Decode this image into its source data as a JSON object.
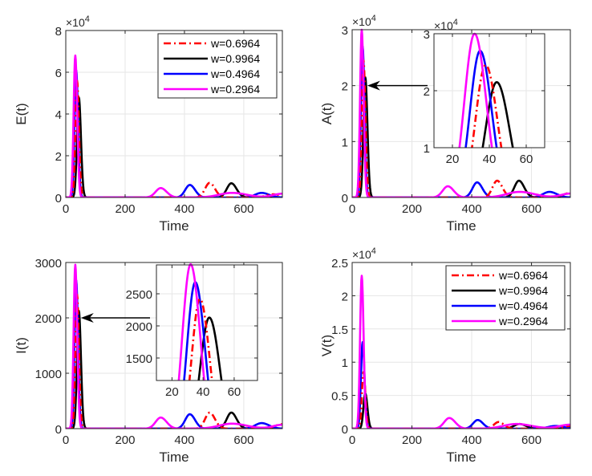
{
  "chart_data": [
    {
      "id": "E",
      "type": "line",
      "title": "",
      "xlabel": "Time",
      "ylabel": "E(t)",
      "xlim": [
        0,
        730
      ],
      "ylim": [
        0,
        8
      ],
      "y_multiplier": "×10^4",
      "exponent_label": {
        "base": "×10",
        "power": "4"
      },
      "xticks": [
        0,
        200,
        400,
        600
      ],
      "yticks": [
        0,
        2,
        4,
        6,
        8
      ],
      "ytick_labels": [
        "0",
        "2",
        "4",
        "6",
        "8"
      ],
      "grid": true,
      "legend": "top-right",
      "series": [
        {
          "name": "w=0.6964",
          "color": "#ff0000",
          "style": "dashdot",
          "peaks": [
            {
              "t": 38,
              "v": 5.6,
              "w": 9
            },
            {
              "t": 485,
              "v": 0.7,
              "w": 25
            },
            {
              "t": 700,
              "v": 0.15,
              "w": 40
            }
          ]
        },
        {
          "name": "w=0.9964",
          "color": "#000000",
          "style": "solid",
          "peaks": [
            {
              "t": 44,
              "v": 4.8,
              "w": 10
            },
            {
              "t": 558,
              "v": 0.68,
              "w": 25
            }
          ]
        },
        {
          "name": "w=0.4964",
          "color": "#0000ff",
          "style": "solid",
          "peaks": [
            {
              "t": 35,
              "v": 6.1,
              "w": 9
            },
            {
              "t": 418,
              "v": 0.6,
              "w": 25
            },
            {
              "t": 660,
              "v": 0.22,
              "w": 35
            }
          ]
        },
        {
          "name": "w=0.2964",
          "color": "#ff00ff",
          "style": "solid",
          "peaks": [
            {
              "t": 32,
              "v": 6.8,
              "w": 9
            },
            {
              "t": 320,
              "v": 0.45,
              "w": 28
            },
            {
              "t": 560,
              "v": 0.22,
              "w": 70
            },
            {
              "t": 730,
              "v": 0.18,
              "w": 50
            }
          ]
        }
      ]
    },
    {
      "id": "A",
      "type": "line",
      "title": "",
      "xlabel": "Time",
      "ylabel": "A(t)",
      "xlim": [
        0,
        730
      ],
      "ylim": [
        0,
        3
      ],
      "exponent_label": {
        "base": "×10",
        "power": "4"
      },
      "xticks": [
        0,
        200,
        400,
        600
      ],
      "yticks": [
        0,
        1,
        2,
        3
      ],
      "ytick_labels": [
        "0",
        "1",
        "2",
        "3"
      ],
      "grid": true,
      "legend": "none",
      "series": [
        {
          "name": "w=0.6964",
          "color": "#ff0000",
          "style": "dashdot",
          "peaks": [
            {
              "t": 38,
              "v": 2.45,
              "w": 9
            },
            {
              "t": 485,
              "v": 0.3,
              "w": 25
            },
            {
              "t": 730,
              "v": 0.08,
              "w": 40
            }
          ]
        },
        {
          "name": "w=0.9964",
          "color": "#000000",
          "style": "solid",
          "peaks": [
            {
              "t": 44,
              "v": 2.15,
              "w": 10
            },
            {
              "t": 558,
              "v": 0.3,
              "w": 25
            }
          ]
        },
        {
          "name": "w=0.4964",
          "color": "#0000ff",
          "style": "solid",
          "peaks": [
            {
              "t": 35,
              "v": 2.7,
              "w": 9
            },
            {
              "t": 418,
              "v": 0.27,
              "w": 25
            },
            {
              "t": 660,
              "v": 0.1,
              "w": 35
            }
          ]
        },
        {
          "name": "w=0.2964",
          "color": "#ff00ff",
          "style": "solid",
          "peaks": [
            {
              "t": 32,
              "v": 3.0,
              "w": 9
            },
            {
              "t": 320,
              "v": 0.2,
              "w": 28
            },
            {
              "t": 560,
              "v": 0.1,
              "w": 70
            },
            {
              "t": 730,
              "v": 0.07,
              "w": 50
            }
          ]
        }
      ],
      "inset": {
        "xlim": [
          10,
          70
        ],
        "ylim": [
          1,
          3
        ],
        "xticks": [
          20,
          40,
          60
        ],
        "yticks": [
          1,
          2,
          3
        ],
        "ytick_labels": [
          "1",
          "2",
          "3"
        ],
        "exponent_label": {
          "base": "×10",
          "power": "4"
        },
        "arrow_target": {
          "t": 40,
          "v": 2.0
        }
      }
    },
    {
      "id": "I",
      "type": "line",
      "title": "",
      "xlabel": "Time",
      "ylabel": "I(t)",
      "xlim": [
        0,
        730
      ],
      "ylim": [
        0,
        3000
      ],
      "xticks": [
        0,
        200,
        400,
        600
      ],
      "yticks": [
        0,
        1000,
        2000,
        3000
      ],
      "ytick_labels": [
        "0",
        "1000",
        "2000",
        "3000"
      ],
      "grid": true,
      "legend": "none",
      "series": [
        {
          "name": "w=0.6964",
          "color": "#ff0000",
          "style": "dashdot",
          "peaks": [
            {
              "t": 38,
              "v": 2420,
              "w": 9
            },
            {
              "t": 485,
              "v": 290,
              "w": 25
            },
            {
              "t": 730,
              "v": 80,
              "w": 40
            }
          ]
        },
        {
          "name": "w=0.9964",
          "color": "#000000",
          "style": "solid",
          "peaks": [
            {
              "t": 44,
              "v": 2130,
              "w": 10
            },
            {
              "t": 558,
              "v": 290,
              "w": 25
            }
          ]
        },
        {
          "name": "w=0.4964",
          "color": "#0000ff",
          "style": "solid",
          "peaks": [
            {
              "t": 35,
              "v": 2680,
              "w": 9
            },
            {
              "t": 418,
              "v": 260,
              "w": 25
            },
            {
              "t": 660,
              "v": 100,
              "w": 35
            }
          ]
        },
        {
          "name": "w=0.2964",
          "color": "#ff00ff",
          "style": "solid",
          "peaks": [
            {
              "t": 32,
              "v": 2960,
              "w": 9
            },
            {
              "t": 320,
              "v": 200,
              "w": 28
            },
            {
              "t": 560,
              "v": 90,
              "w": 70
            },
            {
              "t": 730,
              "v": 70,
              "w": 50
            }
          ]
        }
      ],
      "inset": {
        "xlim": [
          10,
          75
        ],
        "ylim": [
          1150,
          2950
        ],
        "xticks": [
          20,
          40,
          60
        ],
        "yticks": [
          1500,
          2000,
          2500
        ],
        "ytick_labels": [
          "1500",
          "2000",
          "2500"
        ],
        "arrow_target": {
          "t": 40,
          "v": 2000
        }
      }
    },
    {
      "id": "V",
      "type": "line",
      "title": "",
      "xlabel": "Time",
      "ylabel": "V(t)",
      "xlim": [
        0,
        730
      ],
      "ylim": [
        0,
        2.5
      ],
      "exponent_label": {
        "base": "×10",
        "power": "4"
      },
      "xticks": [
        0,
        200,
        400,
        600
      ],
      "yticks": [
        0,
        0.5,
        1,
        1.5,
        2,
        2.5
      ],
      "ytick_labels": [
        "0",
        "0.5",
        "1",
        "1.5",
        "2",
        "2.5"
      ],
      "grid": true,
      "legend": "top-right",
      "series": [
        {
          "name": "w=0.6964",
          "color": "#ff0000",
          "style": "dashdot",
          "peaks": [
            {
              "t": 38,
              "v": 0.85,
              "w": 9
            },
            {
              "t": 490,
              "v": 0.1,
              "w": 25
            },
            {
              "t": 730,
              "v": 0.04,
              "w": 40
            }
          ]
        },
        {
          "name": "w=0.9964",
          "color": "#000000",
          "style": "solid",
          "peaks": [
            {
              "t": 44,
              "v": 0.53,
              "w": 10
            },
            {
              "t": 560,
              "v": 0.07,
              "w": 30
            }
          ]
        },
        {
          "name": "w=0.4964",
          "color": "#0000ff",
          "style": "solid",
          "peaks": [
            {
              "t": 35,
              "v": 1.3,
              "w": 9
            },
            {
              "t": 420,
              "v": 0.13,
              "w": 25
            },
            {
              "t": 680,
              "v": 0.04,
              "w": 40
            }
          ]
        },
        {
          "name": "w=0.2964",
          "color": "#ff00ff",
          "style": "solid",
          "peaks": [
            {
              "t": 32,
              "v": 2.3,
              "w": 9
            },
            {
              "t": 325,
              "v": 0.16,
              "w": 28
            },
            {
              "t": 550,
              "v": 0.07,
              "w": 70
            },
            {
              "t": 730,
              "v": 0.06,
              "w": 60
            }
          ]
        }
      ]
    }
  ]
}
